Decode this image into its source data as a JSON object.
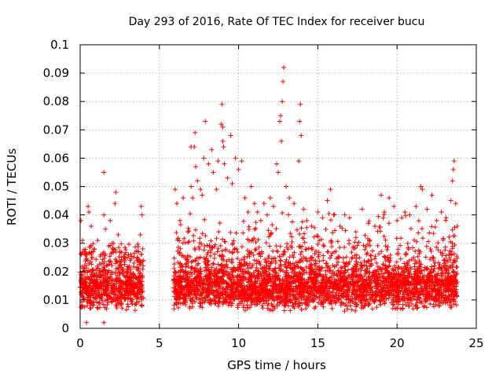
{
  "chart_data": {
    "type": "scatter",
    "title": "Day 293 of 2016, Rate Of TEC Index for receiver bucu",
    "xlabel": "GPS time / hours",
    "ylabel": "ROTI / TECUs",
    "xlim": [
      0,
      25
    ],
    "ylim": [
      0,
      0.1
    ],
    "grid": true,
    "marker": "+",
    "color": "#ff0000",
    "x_ticks": [
      "0",
      "5",
      "10",
      "15",
      "20",
      "25"
    ],
    "x_tick_values": [
      0,
      5,
      10,
      15,
      20,
      25
    ],
    "y_ticks": [
      "0",
      "0.01",
      "0.02",
      "0.03",
      "0.04",
      "0.05",
      "0.06",
      "0.07",
      "0.08",
      "0.09",
      "0.1"
    ],
    "y_tick_values": [
      0,
      0.01,
      0.02,
      0.03,
      0.04,
      0.05,
      0.06,
      0.07,
      0.08,
      0.09,
      0.1
    ],
    "series": [
      {
        "name": "ROTI",
        "points": [
          [
            0.05,
            0.038
          ],
          [
            0.15,
            0.031
          ],
          [
            0.3,
            0.027
          ],
          [
            0.5,
            0.043
          ],
          [
            0.55,
            0.041
          ],
          [
            0.7,
            0.036
          ],
          [
            0.9,
            0.028
          ],
          [
            1.1,
            0.031
          ],
          [
            1.3,
            0.026
          ],
          [
            1.5,
            0.04
          ],
          [
            1.6,
            0.035
          ],
          [
            1.8,
            0.029
          ],
          [
            1.9,
            0.038
          ],
          [
            2.1,
            0.03
          ],
          [
            2.2,
            0.044
          ],
          [
            2.25,
            0.048
          ],
          [
            2.4,
            0.033
          ],
          [
            2.6,
            0.025
          ],
          [
            2.8,
            0.024
          ],
          [
            3.0,
            0.021
          ],
          [
            3.2,
            0.026
          ],
          [
            3.4,
            0.023
          ],
          [
            3.6,
            0.025
          ],
          [
            3.8,
            0.033
          ],
          [
            3.85,
            0.043
          ],
          [
            3.9,
            0.04
          ],
          [
            3.95,
            0.028
          ],
          [
            0.4,
            0.002
          ],
          [
            1.5,
            0.002
          ],
          [
            1.5,
            0.055
          ],
          [
            6.0,
            0.049
          ],
          [
            6.1,
            0.044
          ],
          [
            6.3,
            0.038
          ],
          [
            6.5,
            0.046
          ],
          [
            6.8,
            0.034
          ],
          [
            7.0,
            0.05
          ],
          [
            7.1,
            0.046
          ],
          [
            7.2,
            0.064
          ],
          [
            7.25,
            0.069
          ],
          [
            7.3,
            0.057
          ],
          [
            7.4,
            0.052
          ],
          [
            7.6,
            0.049
          ],
          [
            7.7,
            0.047
          ],
          [
            7.8,
            0.06
          ],
          [
            7.9,
            0.073
          ],
          [
            8.1,
            0.058
          ],
          [
            8.3,
            0.063
          ],
          [
            8.4,
            0.055
          ],
          [
            8.6,
            0.049
          ],
          [
            8.7,
            0.059
          ],
          [
            8.9,
            0.072
          ],
          [
            8.95,
            0.079
          ],
          [
            9.0,
            0.066
          ],
          [
            9.05,
            0.064
          ],
          [
            9.1,
            0.058
          ],
          [
            9.3,
            0.053
          ],
          [
            9.5,
            0.068
          ],
          [
            9.6,
            0.051
          ],
          [
            9.8,
            0.06
          ],
          [
            10.0,
            0.056
          ],
          [
            10.2,
            0.059
          ],
          [
            10.4,
            0.046
          ],
          [
            10.6,
            0.041
          ],
          [
            10.8,
            0.05
          ],
          [
            11.0,
            0.044
          ],
          [
            11.2,
            0.041
          ],
          [
            11.4,
            0.038
          ],
          [
            11.6,
            0.044
          ],
          [
            11.8,
            0.04
          ],
          [
            12.0,
            0.046
          ],
          [
            12.2,
            0.043
          ],
          [
            12.4,
            0.058
          ],
          [
            12.5,
            0.055
          ],
          [
            12.6,
            0.073
          ],
          [
            12.7,
            0.066
          ],
          [
            12.75,
            0.08
          ],
          [
            12.8,
            0.087
          ],
          [
            12.85,
            0.092
          ],
          [
            13.0,
            0.05
          ],
          [
            13.2,
            0.046
          ],
          [
            13.5,
            0.044
          ],
          [
            13.8,
            0.059
          ],
          [
            13.85,
            0.073
          ],
          [
            13.9,
            0.079
          ],
          [
            13.95,
            0.068
          ],
          [
            14.1,
            0.042
          ],
          [
            14.3,
            0.038
          ],
          [
            14.6,
            0.036
          ],
          [
            15.0,
            0.041
          ],
          [
            15.3,
            0.039
          ],
          [
            15.6,
            0.045
          ],
          [
            15.8,
            0.049
          ],
          [
            16.0,
            0.04
          ],
          [
            16.4,
            0.036
          ],
          [
            16.7,
            0.04
          ],
          [
            17.0,
            0.039
          ],
          [
            17.4,
            0.034
          ],
          [
            17.8,
            0.042
          ],
          [
            18.2,
            0.037
          ],
          [
            18.6,
            0.036
          ],
          [
            19.0,
            0.047
          ],
          [
            19.2,
            0.041
          ],
          [
            19.5,
            0.046
          ],
          [
            19.8,
            0.043
          ],
          [
            20.0,
            0.038
          ],
          [
            20.3,
            0.039
          ],
          [
            20.5,
            0.041
          ],
          [
            20.8,
            0.04
          ],
          [
            21.2,
            0.043
          ],
          [
            21.5,
            0.05
          ],
          [
            21.6,
            0.049
          ],
          [
            21.9,
            0.042
          ],
          [
            22.2,
            0.047
          ],
          [
            22.5,
            0.038
          ],
          [
            22.8,
            0.041
          ],
          [
            23.1,
            0.039
          ],
          [
            23.4,
            0.045
          ],
          [
            23.5,
            0.052
          ],
          [
            23.55,
            0.056
          ],
          [
            23.6,
            0.059
          ],
          [
            23.7,
            0.044
          ],
          [
            23.8,
            0.036
          ],
          [
            12.65,
            0.075
          ],
          [
            7.0,
            0.064
          ],
          [
            9.0,
            0.071
          ]
        ]
      }
    ]
  }
}
